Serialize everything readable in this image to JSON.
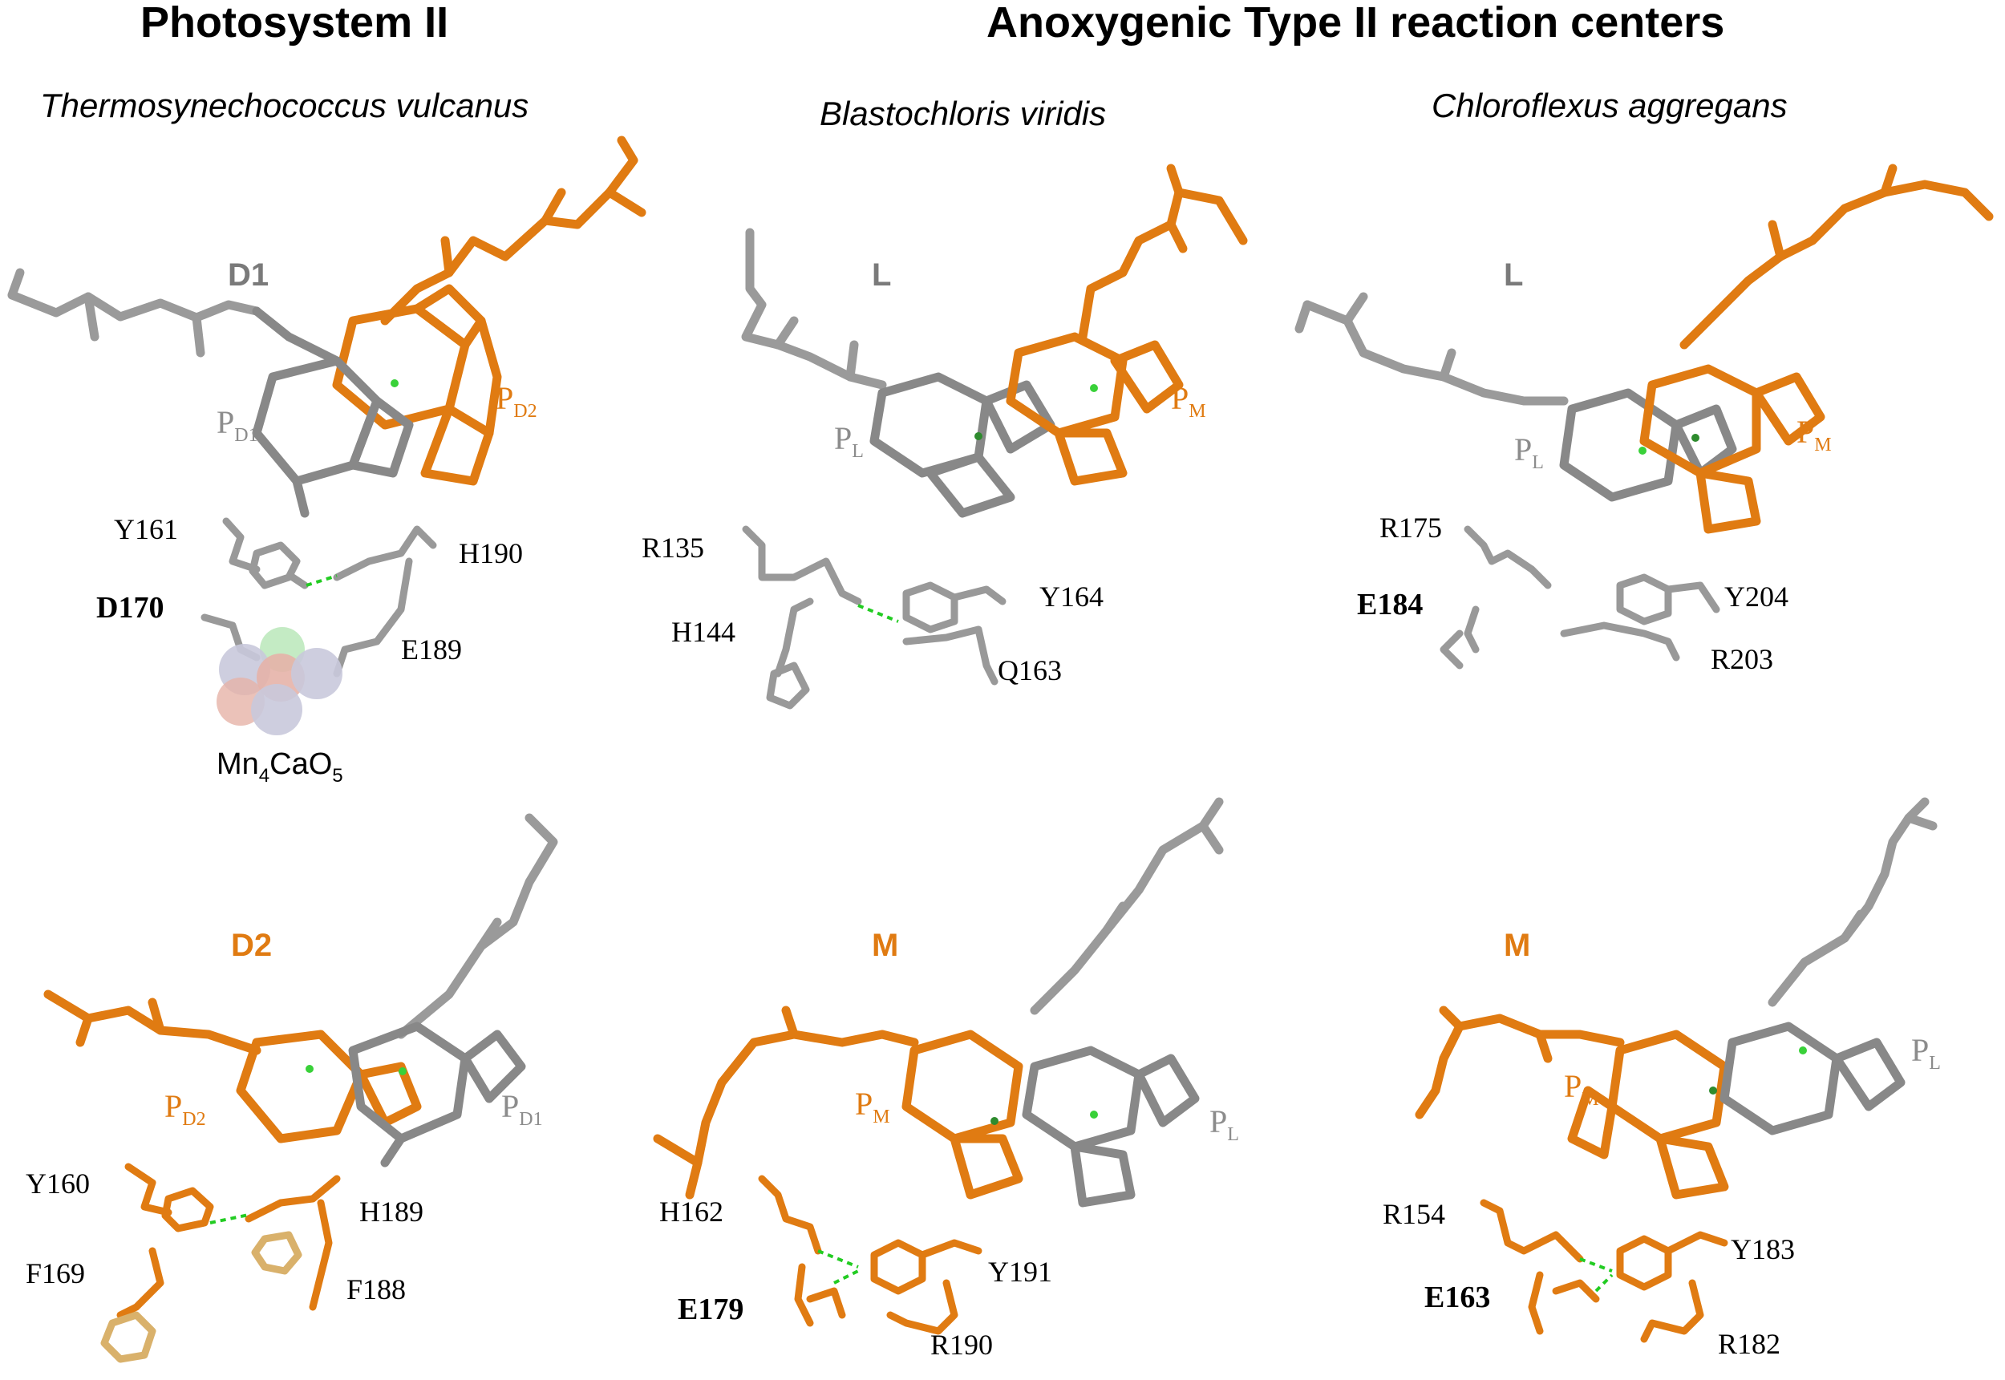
{
  "headings": {
    "photosystem": "Photosystem II",
    "anoxygenic": "Anoxygenic Type II reaction centers"
  },
  "colors": {
    "orange": "#e07b12",
    "grey": "#8c8c8c",
    "darkgrey": "#666666",
    "wheat": "#d9b16b",
    "hbond": "#22cc22"
  },
  "panels": [
    {
      "species": "Thermosynechococcus vulcanus",
      "top": {
        "chain": "D1",
        "chain_color": "grey",
        "pig_a": {
          "base": "P",
          "sub": "D1"
        },
        "pig_b": {
          "base": "P",
          "sub": "D2"
        },
        "residues": [
          "Y161",
          "H190",
          "D170",
          "E189"
        ],
        "bold_residue": "D170",
        "cluster": {
          "base1": "Mn",
          "sub1": "4",
          "base2": "CaO",
          "sub2": "5"
        }
      },
      "bottom": {
        "chain": "D2",
        "chain_color": "orange",
        "pig_a": {
          "base": "P",
          "sub": "D2"
        },
        "pig_b": {
          "base": "P",
          "sub": "D1"
        },
        "residues": [
          "Y160",
          "H189",
          "F169",
          "F188"
        ]
      }
    },
    {
      "species": "Blastochloris viridis",
      "top": {
        "chain": "L",
        "chain_color": "grey",
        "pig_a": {
          "base": "P",
          "sub": "L"
        },
        "pig_b": {
          "base": "P",
          "sub": "M"
        },
        "residues": [
          "R135",
          "Y164",
          "H144",
          "Q163"
        ]
      },
      "bottom": {
        "chain": "M",
        "chain_color": "orange",
        "pig_a": {
          "base": "P",
          "sub": "M"
        },
        "pig_b": {
          "base": "P",
          "sub": "L"
        },
        "residues": [
          "H162",
          "Y191",
          "E179",
          "R190"
        ],
        "bold_residue": "E179"
      }
    },
    {
      "species": "Chloroflexus aggregans",
      "top": {
        "chain": "L",
        "chain_color": "grey",
        "pig_a": {
          "base": "P",
          "sub": "L"
        },
        "pig_b": {
          "base": "P",
          "sub": "M"
        },
        "residues": [
          "R175",
          "E184",
          "Y204",
          "R203"
        ],
        "bold_residue": "E184"
      },
      "bottom": {
        "chain": "M",
        "chain_color": "orange",
        "pig_a": {
          "base": "P",
          "sub": "M"
        },
        "pig_b": {
          "base": "P",
          "sub": "L"
        },
        "residues": [
          "R154",
          "Y183",
          "E163",
          "R182"
        ],
        "bold_residue": "E163"
      }
    }
  ]
}
